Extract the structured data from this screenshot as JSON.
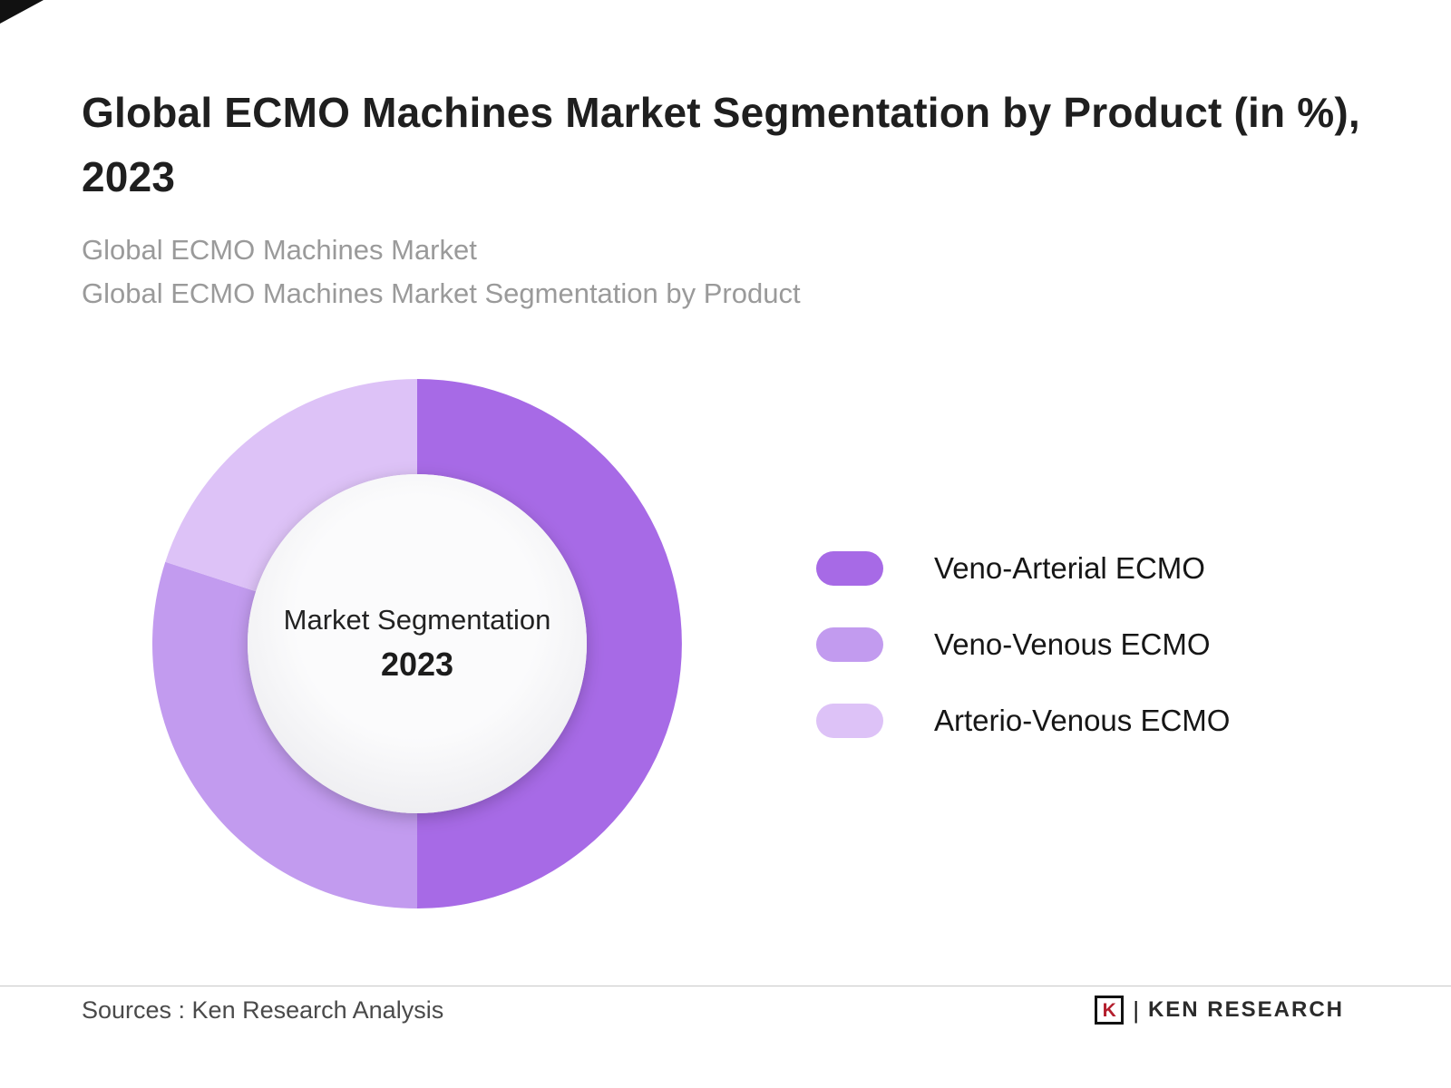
{
  "page": {
    "title": "Global ECMO Machines Market Segmentation by Product (in %), 2023",
    "subtitle_line1": "Global ECMO Machines Market",
    "subtitle_line2": "Global ECMO Machines Market Segmentation by Product"
  },
  "chart_data": {
    "type": "pie",
    "subtype": "donut",
    "title": "Global ECMO Machines Market Segmentation by Product (in %), 2023",
    "center_label": "Market Segmentation",
    "center_year": "2023",
    "categories": [
      "Veno-Arterial ECMO",
      "Veno-Venous ECMO",
      "Arterio-Venous ECMO"
    ],
    "values": [
      50,
      30,
      20
    ],
    "unit": "%",
    "colors": [
      "#a76ae6",
      "#c29bef",
      "#ddc2f7"
    ],
    "start_angle_deg": 0,
    "direction": "clockwise",
    "legend_position": "right"
  },
  "legend": {
    "items": [
      {
        "label": "Veno-Arterial ECMO",
        "color": "#a76ae6"
      },
      {
        "label": "Veno-Venous ECMO",
        "color": "#c29bef"
      },
      {
        "label": "Arterio-Venous ECMO",
        "color": "#ddc2f7"
      }
    ]
  },
  "footer": {
    "source": "Sources : Ken Research Analysis",
    "logo_letter": "K",
    "logo_divider": "|",
    "logo_text": "KEN RESEARCH"
  }
}
